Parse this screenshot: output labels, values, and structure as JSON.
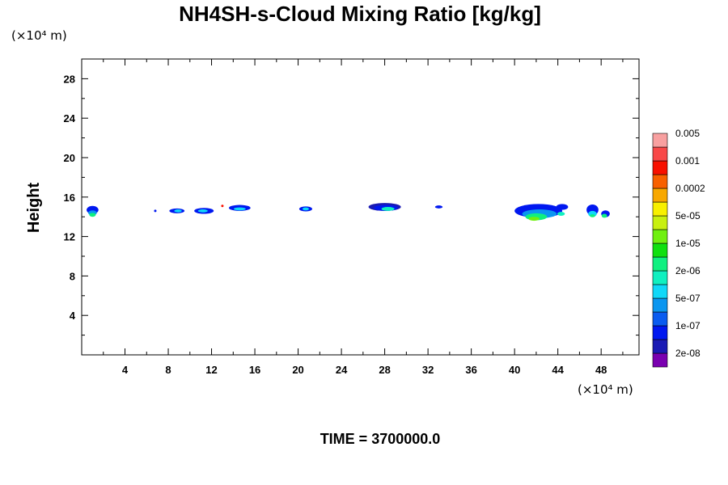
{
  "chart_data": {
    "type": "heatmap",
    "title": "NH4SH-s-Cloud Mixing Ratio [kg/kg]",
    "x_unit": "(×10⁴ m)",
    "y_unit": "(×10⁴ m)",
    "ylabel": "Height",
    "xlabel": "",
    "footer": "TIME = 3700000.0",
    "xlim": [
      0,
      51.5
    ],
    "ylim": [
      0,
      30
    ],
    "x_ticks": [
      4,
      8,
      12,
      16,
      20,
      24,
      28,
      32,
      36,
      40,
      44,
      48
    ],
    "x_tick_labels": [
      "4",
      "8",
      "12",
      "16",
      "20",
      "24",
      "28",
      "32",
      "36",
      "40",
      "44",
      "48"
    ],
    "y_ticks": [
      4,
      8,
      12,
      16,
      20,
      24,
      28
    ],
    "y_tick_labels": [
      "4",
      "8",
      "12",
      "16",
      "20",
      "24",
      "28"
    ],
    "colorbar": {
      "colors": [
        "#7a00b0",
        "#1a1ab4",
        "#0018f0",
        "#0a5cf0",
        "#0a96f0",
        "#10d8f8",
        "#10f0c0",
        "#10f080",
        "#10e010",
        "#70f010",
        "#c8f010",
        "#f8f000",
        "#f8a800",
        "#f86000",
        "#f81000",
        "#f84848",
        "#f8a0a0"
      ],
      "labels": [
        "2e-08",
        "1e-07",
        "5e-07",
        "2e-06",
        "1e-05",
        "5e-05",
        "0.0002",
        "0.001",
        "0.005"
      ],
      "label_slots": [
        1,
        3,
        5,
        7,
        9,
        11,
        13,
        15,
        17
      ]
    },
    "clouds": [
      {
        "x": 1.0,
        "y": 14.7,
        "w": 1.1,
        "h": 0.8,
        "level": 2
      },
      {
        "x": 1.0,
        "y": 14.4,
        "w": 0.8,
        "h": 0.5,
        "level": 4
      },
      {
        "x": 1.0,
        "y": 14.2,
        "w": 0.6,
        "h": 0.4,
        "level": 7
      },
      {
        "x": 6.8,
        "y": 14.6,
        "w": 0.2,
        "h": 0.2,
        "level": 2
      },
      {
        "x": 8.8,
        "y": 14.6,
        "w": 1.4,
        "h": 0.5,
        "level": 2
      },
      {
        "x": 8.9,
        "y": 14.6,
        "w": 0.7,
        "h": 0.3,
        "level": 5
      },
      {
        "x": 11.3,
        "y": 14.6,
        "w": 1.8,
        "h": 0.6,
        "level": 2
      },
      {
        "x": 11.2,
        "y": 14.6,
        "w": 0.9,
        "h": 0.3,
        "level": 5
      },
      {
        "x": 13.0,
        "y": 15.1,
        "w": 0.2,
        "h": 0.2,
        "level": 14
      },
      {
        "x": 14.6,
        "y": 14.9,
        "w": 2.0,
        "h": 0.6,
        "level": 2
      },
      {
        "x": 14.6,
        "y": 14.8,
        "w": 1.1,
        "h": 0.3,
        "level": 5
      },
      {
        "x": 20.7,
        "y": 14.8,
        "w": 1.2,
        "h": 0.5,
        "level": 2
      },
      {
        "x": 20.7,
        "y": 14.8,
        "w": 0.6,
        "h": 0.3,
        "level": 5
      },
      {
        "x": 28.0,
        "y": 15.0,
        "w": 3.0,
        "h": 0.8,
        "level": 1
      },
      {
        "x": 28.1,
        "y": 14.9,
        "w": 2.2,
        "h": 0.6,
        "level": 2
      },
      {
        "x": 28.3,
        "y": 14.8,
        "w": 1.2,
        "h": 0.4,
        "level": 6
      },
      {
        "x": 33.0,
        "y": 15.0,
        "w": 0.7,
        "h": 0.3,
        "level": 2
      },
      {
        "x": 42.2,
        "y": 14.6,
        "w": 4.4,
        "h": 1.4,
        "level": 2
      },
      {
        "x": 42.3,
        "y": 14.3,
        "w": 3.2,
        "h": 0.9,
        "level": 4
      },
      {
        "x": 42.0,
        "y": 14.0,
        "w": 2.0,
        "h": 0.7,
        "level": 7
      },
      {
        "x": 41.8,
        "y": 13.8,
        "w": 1.0,
        "h": 0.4,
        "level": 9
      },
      {
        "x": 44.4,
        "y": 15.0,
        "w": 1.1,
        "h": 0.6,
        "level": 2
      },
      {
        "x": 44.3,
        "y": 14.3,
        "w": 0.7,
        "h": 0.4,
        "level": 6
      },
      {
        "x": 47.2,
        "y": 14.7,
        "w": 1.1,
        "h": 1.1,
        "level": 2
      },
      {
        "x": 47.2,
        "y": 14.3,
        "w": 0.8,
        "h": 0.6,
        "level": 5
      },
      {
        "x": 47.2,
        "y": 14.1,
        "w": 0.5,
        "h": 0.3,
        "level": 7
      },
      {
        "x": 48.4,
        "y": 14.3,
        "w": 0.8,
        "h": 0.7,
        "level": 2
      },
      {
        "x": 48.3,
        "y": 14.1,
        "w": 0.5,
        "h": 0.4,
        "level": 7
      }
    ]
  }
}
